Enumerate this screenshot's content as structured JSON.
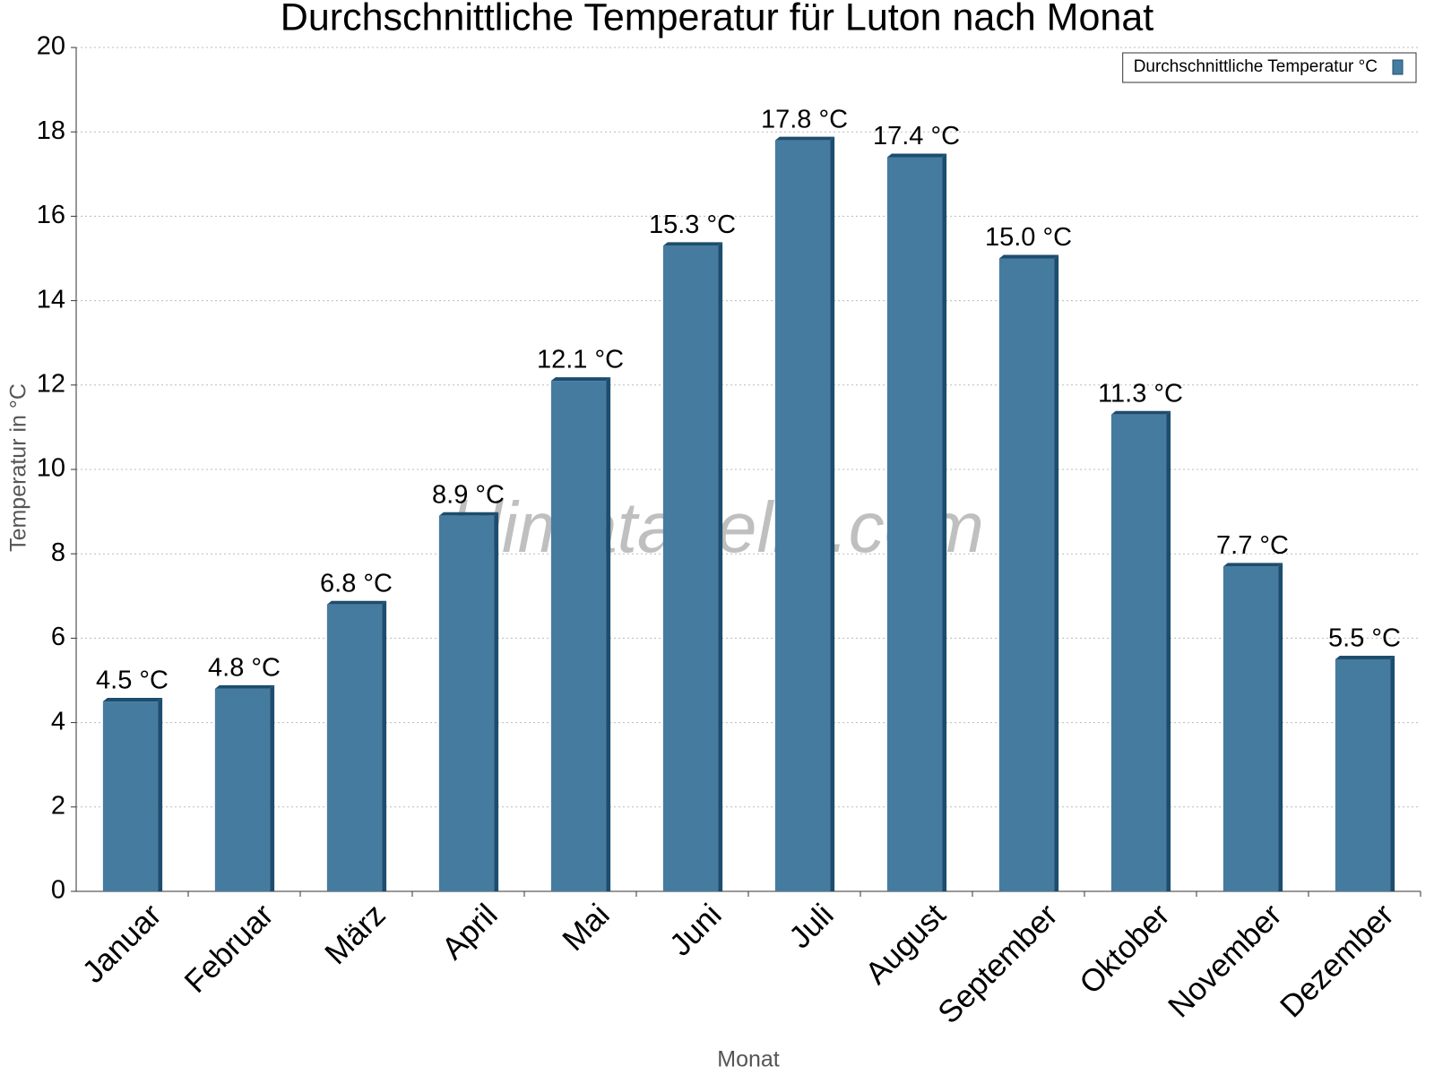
{
  "chart_data": {
    "type": "bar",
    "title": "Durchschnittliche Temperatur für Luton nach Monat",
    "x_label": "Monat",
    "y_label": "Temperatur in °C",
    "watermark": "klimatabelle.com",
    "categories": [
      "Januar",
      "Februar",
      "März",
      "April",
      "Mai",
      "Juni",
      "Juli",
      "August",
      "September",
      "Oktober",
      "November",
      "Dezember"
    ],
    "series": [
      {
        "name": "Durchschnittliche Temperatur °C",
        "color": "#467ba0",
        "values": [
          4.5,
          4.8,
          6.8,
          8.9,
          12.1,
          15.3,
          17.8,
          17.4,
          15.0,
          11.3,
          7.7,
          5.5
        ],
        "value_labels": [
          "4.5 °C",
          "4.8 °C",
          "6.8 °C",
          "8.9 °C",
          "12.1 °C",
          "15.3 °C",
          "17.8 °C",
          "17.4 °C",
          "15.0 °C",
          "11.3 °C",
          "7.7 °C",
          "5.5 °C"
        ]
      }
    ],
    "ylim": [
      0,
      20
    ],
    "yticks": [
      0,
      2,
      4,
      6,
      8,
      10,
      12,
      14,
      16,
      18,
      20
    ],
    "grid": true,
    "legend": "top-right"
  }
}
